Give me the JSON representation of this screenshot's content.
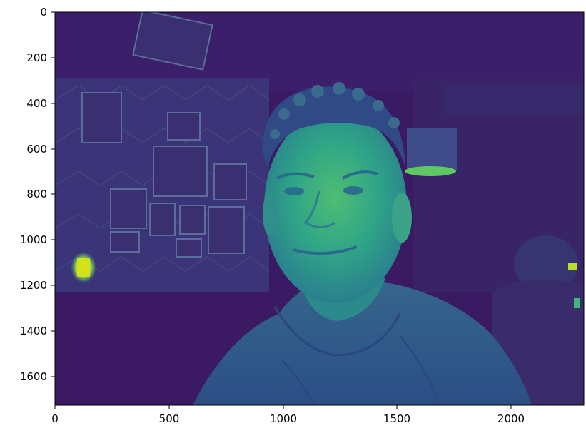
{
  "chart_data": {
    "type": "heatmap",
    "title": "",
    "xlabel": "",
    "ylabel": "",
    "colormap": "viridis",
    "image_size": [
      2320,
      1728
    ],
    "xlim": [
      0,
      2320
    ],
    "ylim": [
      1728,
      0
    ],
    "x_ticks": [
      0,
      500,
      1000,
      1500,
      2000
    ],
    "x_tick_labels": [
      "0",
      "500",
      "1000",
      "1500",
      "2000"
    ],
    "y_ticks": [
      0,
      200,
      400,
      600,
      800,
      1000,
      1200,
      1400,
      1600
    ],
    "y_tick_labels": [
      "0",
      "200",
      "400",
      "600",
      "800",
      "1000",
      "1200",
      "1400",
      "1600"
    ],
    "grid": false,
    "legend": "none"
  },
  "colors": {
    "dark": "#3b1a63",
    "mid": "#2f5d8c",
    "teal": "#2a9a8a",
    "bright": "#5ec962",
    "yellow": "#d8e219",
    "axis": "#000000"
  }
}
